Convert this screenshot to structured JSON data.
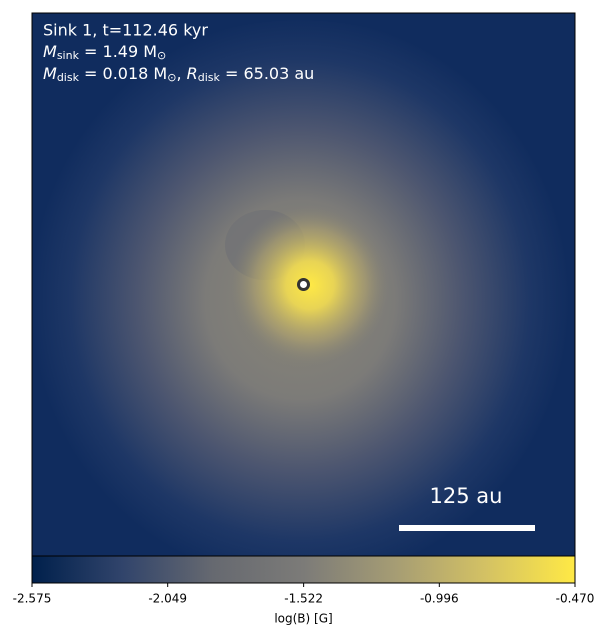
{
  "chart_data": {
    "type": "heatmap",
    "annotations": {
      "line1": "Sink 1, t=112.46 kyr",
      "line2": {
        "symbol": "M",
        "sub": "sink",
        "rest": " = 1.49 M",
        "rest_sub": "⊙"
      },
      "line3": {
        "symbol": "M",
        "sub": "disk",
        "rest": " = 0.018 M",
        "rest_sub": "⊙",
        "sep": ", ",
        "symbol2": "R",
        "sub2": "disk",
        "rest2": " = 65.03 au"
      },
      "scale_bar": "125 au"
    },
    "colorbar": {
      "label": "log(B) [G]",
      "clim": [
        -2.575,
        -0.47
      ],
      "ticks": [
        -2.575,
        -2.049,
        -1.522,
        -0.996,
        {
          "value": -0.47,
          "label": "-0.470"
        }
      ],
      "colors": [
        "#00204c",
        "#31446b",
        "#666970",
        "#7c7b78",
        "#a59c74",
        "#d3c164",
        "#ffe945"
      ]
    }
  }
}
